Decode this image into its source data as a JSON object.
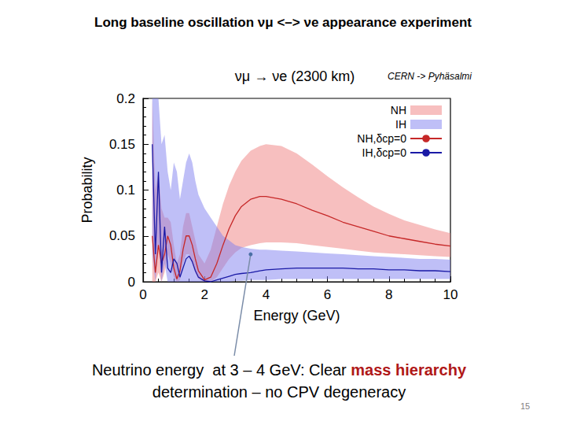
{
  "slide": {
    "title": "Long baseline oscillation νμ <–> νe appearance experiment",
    "page": "15"
  },
  "chart_data": {
    "type": "line",
    "title": "νμ → νe (2300 km)",
    "subtitle": "CERN -> Pyhäsalmi",
    "x_label": "Energy (GeV)",
    "y_label": "Probability",
    "xlim": [
      0,
      10
    ],
    "xticks": [
      0,
      2,
      4,
      6,
      8,
      10
    ],
    "ylim": [
      0,
      0.2
    ],
    "yticks": [
      0,
      0.05,
      0.1,
      0.15,
      0.2
    ],
    "grid": false,
    "legend": "upper right",
    "x": [
      0.3,
      0.4,
      0.5,
      0.6,
      0.7,
      0.8,
      0.9,
      1.0,
      1.1,
      1.2,
      1.3,
      1.4,
      1.5,
      1.6,
      1.7,
      1.8,
      2.0,
      2.2,
      2.4,
      2.6,
      2.8,
      3.0,
      3.2,
      3.5,
      3.8,
      4.0,
      4.5,
      5,
      5.5,
      6,
      6.5,
      7,
      7.5,
      8,
      8.5,
      9,
      9.5,
      10
    ],
    "series": [
      {
        "name": "NH",
        "type": "band",
        "color": "#f08080",
        "lower": [
          0,
          0,
          0.01,
          0,
          0.01,
          0.03,
          0.02,
          0.005,
          0,
          0.002,
          0.02,
          0.03,
          0.03,
          0.02,
          0.01,
          0.003,
          0,
          0,
          0.005,
          0.015,
          0.025,
          0.032,
          0.037,
          0.04,
          0.042,
          0.043,
          0.043,
          0.042,
          0.04,
          0.038,
          0.036,
          0.034,
          0.032,
          0.031,
          0.03,
          0.029,
          0.028,
          0.027
        ],
        "upper": [
          0.2,
          0.1,
          0.12,
          0.08,
          0.07,
          0.07,
          0.065,
          0.04,
          0.02,
          0.03,
          0.06,
          0.075,
          0.075,
          0.06,
          0.045,
          0.03,
          0.02,
          0.035,
          0.06,
          0.085,
          0.105,
          0.12,
          0.132,
          0.143,
          0.148,
          0.15,
          0.148,
          0.14,
          0.128,
          0.115,
          0.103,
          0.092,
          0.082,
          0.074,
          0.067,
          0.062,
          0.057,
          0.053
        ]
      },
      {
        "name": "IH",
        "type": "band",
        "color": "#8080f0",
        "lower": [
          0.03,
          0,
          0.04,
          0,
          0.02,
          0,
          0,
          0,
          0,
          0,
          0,
          0,
          0,
          0,
          0,
          0,
          0,
          0,
          0,
          0,
          0,
          0.001,
          0.001,
          0.002,
          0.002,
          0.002,
          0.003,
          0.003,
          0.003,
          0.003,
          0.003,
          0.003,
          0.003,
          0.003,
          0.003,
          0.003,
          0.003,
          0.003
        ],
        "upper": [
          0.2,
          0.2,
          0.2,
          0.15,
          0.16,
          0.12,
          0.1,
          0.13,
          0.12,
          0.09,
          0.11,
          0.13,
          0.14,
          0.13,
          0.11,
          0.095,
          0.08,
          0.07,
          0.06,
          0.05,
          0.045,
          0.04,
          0.038,
          0.036,
          0.035,
          0.035,
          0.034,
          0.033,
          0.032,
          0.031,
          0.03,
          0.029,
          0.028,
          0.027,
          0.026,
          0.025,
          0.025,
          0.024
        ]
      },
      {
        "name": "NH,δcp=0",
        "type": "line",
        "color": "#c62828",
        "values": [
          0.05,
          0.01,
          0.04,
          0.02,
          0.03,
          0.05,
          0.04,
          0.015,
          0.003,
          0.012,
          0.035,
          0.05,
          0.05,
          0.04,
          0.025,
          0.012,
          0.002,
          0.005,
          0.02,
          0.04,
          0.058,
          0.072,
          0.082,
          0.09,
          0.093,
          0.093,
          0.09,
          0.085,
          0.078,
          0.072,
          0.065,
          0.06,
          0.055,
          0.05,
          0.047,
          0.044,
          0.041,
          0.039
        ]
      },
      {
        "name": "IH,δcp=0",
        "type": "line",
        "color": "#1a1aa6",
        "values": [
          0.15,
          0.03,
          0.12,
          0.01,
          0.06,
          0.015,
          0.01,
          0.025,
          0.02,
          0.005,
          0.015,
          0.025,
          0.028,
          0.022,
          0.012,
          0.005,
          0.001,
          0,
          0.002,
          0.004,
          0.006,
          0.008,
          0.009,
          0.01,
          0.012,
          0.013,
          0.014,
          0.015,
          0.015,
          0.015,
          0.015,
          0.014,
          0.014,
          0.013,
          0.013,
          0.012,
          0.012,
          0.011
        ]
      }
    ],
    "annotation": {
      "lines": [
        "Neutrino energy  at 3 – 4 GeV: Clear mass hierarchy",
        "determination – no CPV degeneracy"
      ],
      "highlight": "mass hierarchy",
      "x": 3.5,
      "y": 0.03
    }
  }
}
